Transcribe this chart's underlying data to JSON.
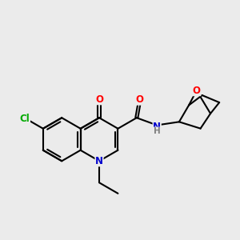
{
  "background_color": "#ebebeb",
  "bond_color": "#000000",
  "atom_colors": {
    "Cl": "#00aa00",
    "O": "#ff0000",
    "N": "#0000cc",
    "H": "#808080"
  },
  "figsize": [
    3.0,
    3.0
  ],
  "dpi": 100
}
